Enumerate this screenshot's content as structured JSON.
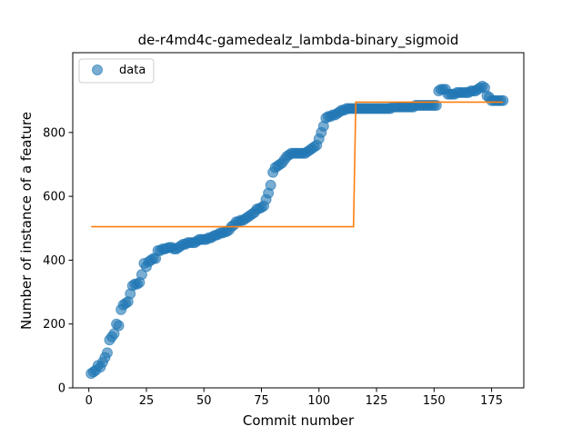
{
  "chart_data": {
    "type": "scatter",
    "title": "de-r4md4c-gamedealz_lambda-binary_sigmoid",
    "xlabel": "Commit number",
    "ylabel": "Number of instance of a feature",
    "xlim": [
      -7.0,
      189.0
    ],
    "ylim": [
      0,
      1050
    ],
    "xticks": [
      0,
      25,
      50,
      75,
      100,
      125,
      150,
      175
    ],
    "yticks": [
      0,
      200,
      400,
      600,
      800
    ],
    "grid": false,
    "legend": {
      "placement": "upper-left",
      "entries": [
        "data"
      ]
    },
    "colors": {
      "data": "#1f77b4",
      "fit": "#ff7f0e"
    },
    "series": [
      {
        "name": "data",
        "kind": "scatter",
        "x": [
          1,
          2,
          3,
          4,
          5,
          6,
          7,
          8,
          9,
          10,
          11,
          12,
          13,
          14,
          15,
          16,
          17,
          18,
          19,
          20,
          21,
          22,
          23,
          24,
          25,
          26,
          27,
          28,
          29,
          30,
          31,
          32,
          33,
          34,
          35,
          36,
          37,
          38,
          39,
          40,
          41,
          42,
          43,
          44,
          45,
          46,
          47,
          48,
          49,
          50,
          51,
          52,
          53,
          54,
          55,
          56,
          57,
          58,
          59,
          60,
          61,
          62,
          63,
          64,
          65,
          66,
          67,
          68,
          69,
          70,
          71,
          72,
          73,
          74,
          75,
          76,
          77,
          78,
          79,
          80,
          81,
          82,
          83,
          84,
          85,
          86,
          87,
          88,
          89,
          90,
          91,
          92,
          93,
          94,
          95,
          96,
          97,
          98,
          99,
          100,
          101,
          102,
          103,
          104,
          105,
          106,
          107,
          108,
          109,
          110,
          111,
          112,
          113,
          114,
          115,
          116,
          117,
          118,
          119,
          120,
          121,
          122,
          123,
          124,
          125,
          126,
          127,
          128,
          129,
          130,
          131,
          132,
          133,
          134,
          135,
          136,
          137,
          138,
          139,
          140,
          141,
          142,
          143,
          144,
          145,
          146,
          147,
          148,
          149,
          150,
          151,
          152,
          153,
          154,
          155,
          156,
          157,
          158,
          159,
          160,
          161,
          162,
          163,
          164,
          165,
          166,
          167,
          168,
          169,
          170,
          171,
          172,
          173,
          174,
          175,
          176,
          177,
          178,
          179,
          180
        ],
        "y": [
          45,
          50,
          55,
          70,
          65,
          80,
          95,
          110,
          150,
          160,
          170,
          200,
          195,
          245,
          260,
          265,
          270,
          295,
          320,
          325,
          325,
          330,
          355,
          390,
          380,
          395,
          400,
          405,
          405,
          430,
          430,
          435,
          435,
          438,
          440,
          440,
          435,
          435,
          440,
          445,
          450,
          450,
          455,
          455,
          455,
          455,
          460,
          465,
          465,
          465,
          465,
          470,
          470,
          475,
          478,
          480,
          485,
          485,
          488,
          490,
          495,
          505,
          510,
          520,
          520,
          525,
          525,
          530,
          535,
          540,
          545,
          550,
          560,
          562,
          565,
          570,
          590,
          610,
          635,
          675,
          690,
          695,
          700,
          705,
          715,
          725,
          730,
          735,
          735,
          735,
          735,
          735,
          735,
          735,
          740,
          745,
          750,
          755,
          760,
          780,
          800,
          820,
          845,
          850,
          850,
          855,
          855,
          860,
          865,
          870,
          870,
          875,
          875,
          875,
          875,
          875,
          875,
          875,
          875,
          875,
          875,
          875,
          875,
          875,
          875,
          875,
          875,
          875,
          875,
          875,
          875,
          880,
          880,
          880,
          880,
          880,
          880,
          880,
          880,
          880,
          880,
          885,
          885,
          885,
          885,
          885,
          885,
          885,
          885,
          885,
          885,
          930,
          935,
          935,
          935,
          920,
          920,
          920,
          920,
          925,
          925,
          925,
          925,
          925,
          925,
          930,
          930,
          930,
          935,
          940,
          945,
          940,
          915,
          910,
          900,
          900,
          900,
          900,
          900,
          900
        ],
        "color": "#1f77b4"
      },
      {
        "kind": "line",
        "x": [
          1,
          115,
          116,
          180
        ],
        "y": [
          505,
          505,
          895,
          895
        ],
        "color": "#ff7f0e"
      }
    ]
  }
}
